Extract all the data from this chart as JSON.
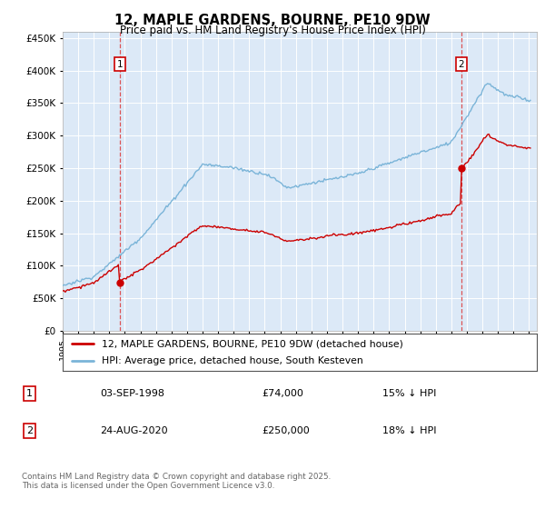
{
  "title": "12, MAPLE GARDENS, BOURNE, PE10 9DW",
  "subtitle": "Price paid vs. HM Land Registry's House Price Index (HPI)",
  "background_color": "#dce9f7",
  "red_line_label": "12, MAPLE GARDENS, BOURNE, PE10 9DW (detached house)",
  "blue_line_label": "HPI: Average price, detached house, South Kesteven",
  "annotation1_date": "03-SEP-1998",
  "annotation1_price": "£74,000",
  "annotation1_hpi": "15% ↓ HPI",
  "annotation1_year": 1998.67,
  "annotation1_value": 74000,
  "annotation2_date": "24-AUG-2020",
  "annotation2_price": "£250,000",
  "annotation2_hpi": "18% ↓ HPI",
  "annotation2_year": 2020.65,
  "annotation2_value": 250000,
  "footer": "Contains HM Land Registry data © Crown copyright and database right 2025.\nThis data is licensed under the Open Government Licence v3.0.",
  "ylim": [
    0,
    460000
  ],
  "yticks": [
    0,
    50000,
    100000,
    150000,
    200000,
    250000,
    300000,
    350000,
    400000,
    450000
  ],
  "red_line_color": "#cc0000",
  "blue_line_color": "#7ab4d8",
  "vline_color": "#dd4444",
  "xlim_start": 1995.0,
  "xlim_end": 2025.5
}
